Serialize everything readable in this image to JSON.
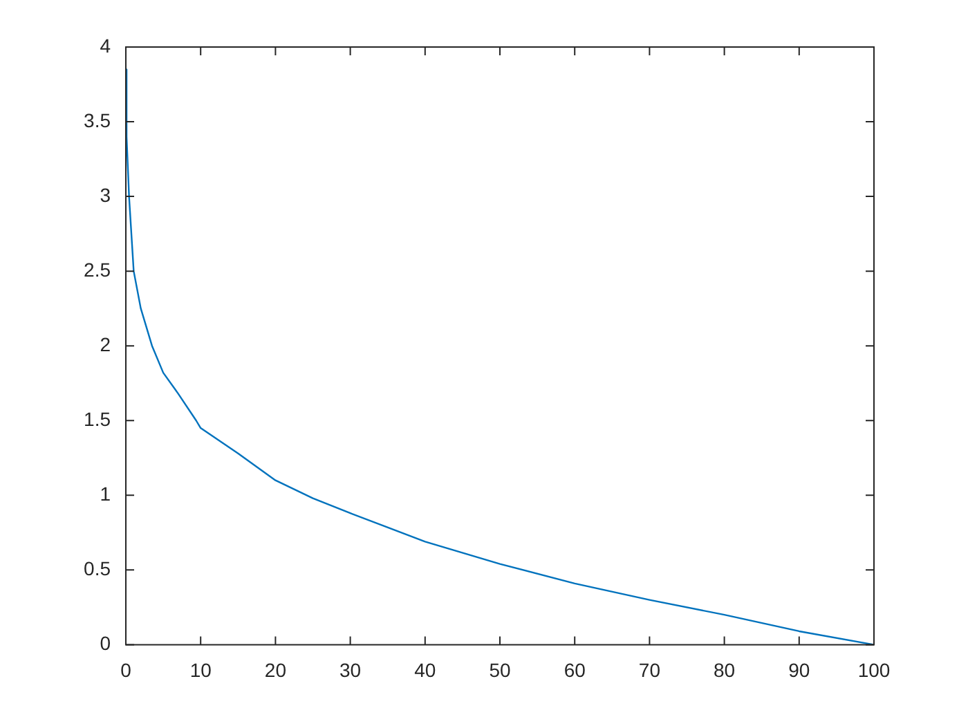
{
  "chart_data": {
    "type": "line",
    "x": [
      0,
      0.1,
      0.43,
      1.05,
      2,
      3.5,
      5,
      7,
      9.4,
      10,
      15,
      20,
      25,
      30,
      40,
      50,
      60,
      70,
      80,
      90,
      100
    ],
    "series": [
      {
        "color": "#0072bd",
        "values": [
          3.85,
          3.4,
          3,
          2.5,
          2.25,
          2,
          1.82,
          1.68,
          1.5,
          1.45,
          1.28,
          1.1,
          0.98,
          0.88,
          0.69,
          0.54,
          0.41,
          0.3,
          0.2,
          0.09,
          0
        ]
      }
    ],
    "xlim": [
      0,
      100
    ],
    "xticks": [
      0,
      10,
      20,
      30,
      40,
      50,
      60,
      70,
      80,
      90,
      100
    ],
    "ylim": [
      0,
      4
    ],
    "yticks": [
      0,
      0.5,
      1,
      1.5,
      2,
      2.5,
      3,
      3.5,
      4
    ],
    "legend": false,
    "marker": "none",
    "line_style": "solid"
  }
}
